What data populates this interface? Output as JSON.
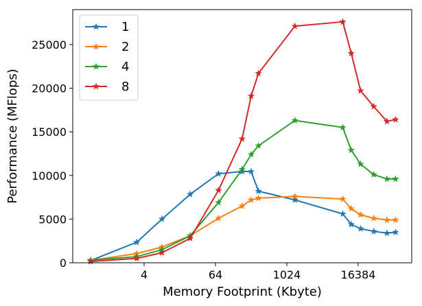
{
  "chart_data": {
    "type": "line",
    "title": "",
    "xlabel": "Memory Footprint (Kbyte)",
    "ylabel": "Performance (MFlops)",
    "x_scale": "log2",
    "xlim": [
      0.25,
      131072
    ],
    "ylim": [
      0,
      29000
    ],
    "x_ticks": [
      4,
      64,
      1024,
      16384
    ],
    "x_tick_labels": [
      "4",
      "64",
      "1024",
      "16384"
    ],
    "y_ticks": [
      0,
      5000,
      10000,
      15000,
      20000,
      25000
    ],
    "y_tick_labels": [
      "0",
      "5000",
      "10000",
      "15000",
      "20000",
      "25000"
    ],
    "grid": false,
    "legend_position": "top-left",
    "marker": "star",
    "series": [
      {
        "name": "1",
        "color": "#1f77b4",
        "x": [
          0.5,
          3,
          8,
          24,
          72,
          180,
          256,
          340,
          1400,
          9000,
          12500,
          18000,
          30000,
          50000,
          70000
        ],
        "y": [
          250,
          2350,
          5000,
          7850,
          10200,
          10450,
          10450,
          8200,
          7200,
          5600,
          4400,
          3900,
          3600,
          3400,
          3500
        ]
      },
      {
        "name": "2",
        "color": "#ff7f0e",
        "x": [
          0.5,
          3,
          8,
          24,
          72,
          180,
          256,
          340,
          1400,
          9000,
          12500,
          18000,
          30000,
          50000,
          70000
        ],
        "y": [
          280,
          1050,
          1800,
          3100,
          5100,
          6500,
          7200,
          7400,
          7600,
          7300,
          6200,
          5500,
          5100,
          4900,
          4900
        ]
      },
      {
        "name": "4",
        "color": "#2ca02c",
        "x": [
          0.5,
          3,
          8,
          24,
          72,
          180,
          256,
          340,
          1400,
          9000,
          12500,
          18000,
          30000,
          50000,
          70000
        ],
        "y": [
          300,
          700,
          1500,
          3100,
          6900,
          10700,
          12400,
          13400,
          16300,
          15500,
          12900,
          11300,
          10100,
          9600,
          9600
        ]
      },
      {
        "name": "8",
        "color": "#d62728",
        "x": [
          0.5,
          3,
          8,
          24,
          72,
          180,
          256,
          340,
          1400,
          9000,
          12500,
          18000,
          30000,
          50000,
          70000
        ],
        "y": [
          150,
          500,
          1150,
          2800,
          8300,
          14200,
          19100,
          21700,
          27100,
          27600,
          24000,
          19700,
          17900,
          16200,
          16400
        ]
      }
    ]
  }
}
